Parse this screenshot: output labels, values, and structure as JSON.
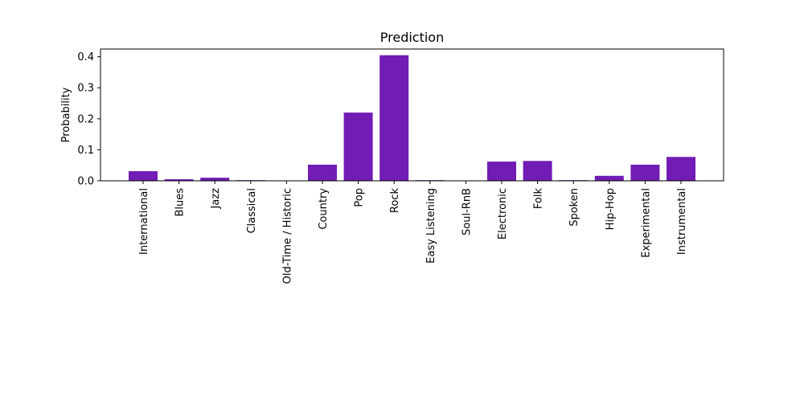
{
  "chart_data": {
    "type": "bar",
    "title": "Prediction",
    "xlabel": "",
    "ylabel": "Probability",
    "categories": [
      "International",
      "Blues",
      "Jazz",
      "Classical",
      "Old-Time / Historic",
      "Country",
      "Pop",
      "Rock",
      "Easy Listening",
      "Soul-RnB",
      "Electronic",
      "Folk",
      "Spoken",
      "Hip-Hop",
      "Experimental",
      "Instrumental"
    ],
    "values": [
      0.031,
      0.005,
      0.01,
      0.002,
      0.001,
      0.052,
      0.22,
      0.405,
      0.002,
      0.001,
      0.062,
      0.064,
      0.002,
      0.016,
      0.052,
      0.077
    ],
    "ylim": [
      0,
      0.425
    ],
    "yticks": [
      0.0,
      0.1,
      0.2,
      0.3,
      0.4
    ],
    "ytick_labels": [
      "0.0",
      "0.1",
      "0.2",
      "0.3",
      "0.4"
    ],
    "bar_color": "#711cb4",
    "grid": false,
    "legend": false
  }
}
